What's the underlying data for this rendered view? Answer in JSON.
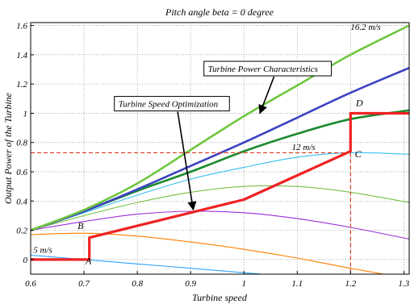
{
  "chart_data": {
    "type": "line",
    "title": "Pitch angle beta = 0 degree",
    "xlabel": "Turbine speed",
    "ylabel": "Output Power of the Turbine",
    "xlim": [
      0.6,
      1.31
    ],
    "ylim": [
      -0.1,
      1.62
    ],
    "grid": true,
    "xticks": [
      "0.6",
      "0.7",
      "0.8",
      "0.9",
      "1",
      "1.1",
      "1.2",
      "1.3"
    ],
    "yticks": [
      "0",
      "0.2",
      "0.4",
      "0.6",
      "0.8",
      "1",
      "1.2",
      "1.4",
      "1.6"
    ],
    "xtick_values": [
      0.6,
      0.7,
      0.8,
      0.9,
      1.0,
      1.1,
      1.2,
      1.3
    ],
    "ytick_values": [
      0,
      0.2,
      0.4,
      0.6,
      0.8,
      1.0,
      1.2,
      1.4,
      1.6
    ],
    "series": [
      {
        "color": "#2fa4ff",
        "x": [
          0.6,
          0.7,
          0.8,
          0.9,
          1.0,
          1.1,
          1.2,
          1.31
        ],
        "y": [
          0.03,
          0.0,
          -0.03,
          -0.06,
          -0.09,
          -0.12,
          -0.15,
          -0.18
        ]
      },
      {
        "color": "#ff8000",
        "x": [
          0.6,
          0.7,
          0.8,
          0.9,
          1.0,
          1.1,
          1.2,
          1.31
        ],
        "y": [
          0.17,
          0.18,
          0.16,
          0.12,
          0.07,
          0.01,
          -0.06,
          -0.13
        ]
      },
      {
        "color": "#9b30d9",
        "x": [
          0.6,
          0.7,
          0.8,
          0.9,
          1.0,
          1.1,
          1.2,
          1.31
        ],
        "y": [
          0.2,
          0.26,
          0.31,
          0.33,
          0.32,
          0.28,
          0.22,
          0.14
        ]
      },
      {
        "color": "#77c043",
        "x": [
          0.6,
          0.7,
          0.8,
          0.9,
          1.0,
          1.1,
          1.2,
          1.31
        ],
        "y": [
          0.2,
          0.3,
          0.39,
          0.46,
          0.5,
          0.5,
          0.46,
          0.39
        ]
      },
      {
        "color": "#35c0f0",
        "x": [
          0.6,
          0.7,
          0.8,
          0.9,
          1.0,
          1.1,
          1.2,
          1.31
        ],
        "y": [
          0.2,
          0.32,
          0.44,
          0.55,
          0.63,
          0.7,
          0.73,
          0.72
        ]
      },
      {
        "color": "#1a8a2e",
        "x": [
          0.6,
          0.7,
          0.8,
          0.9,
          1.0,
          1.1,
          1.2,
          1.31
        ],
        "y": [
          0.2,
          0.33,
          0.47,
          0.6,
          0.74,
          0.86,
          0.96,
          1.02
        ]
      },
      {
        "color": "#3d42c2",
        "x": [
          0.6,
          0.7,
          0.8,
          0.9,
          1.0,
          1.1,
          1.2,
          1.31
        ],
        "y": [
          0.2,
          0.33,
          0.48,
          0.64,
          0.8,
          0.97,
          1.14,
          1.31
        ]
      },
      {
        "color": "#6fc63f",
        "x": [
          0.6,
          0.7,
          0.8,
          0.9,
          1.0,
          1.1,
          1.2,
          1.31
        ],
        "y": [
          0.2,
          0.34,
          0.52,
          0.75,
          0.98,
          1.19,
          1.4,
          1.6
        ]
      },
      {
        "color": "#ee2222",
        "x": [
          0.6,
          0.7,
          0.7,
          0.71,
          0.71,
          1.0,
          1.2,
          1.2,
          1.31
        ],
        "y": [
          0.0,
          0.0,
          0.0,
          0.0,
          0.15,
          0.41,
          0.74,
          1.0,
          1.0
        ]
      }
    ],
    "reference_lines": [
      {
        "axis": "y",
        "value": 0.73,
        "color": "#d83a20"
      },
      {
        "axis": "x",
        "value": 1.2,
        "color": "#d83a20"
      }
    ],
    "point_labels": [
      {
        "text": "A",
        "x": 0.703,
        "y": -0.03
      },
      {
        "text": "B",
        "x": 0.688,
        "y": 0.21
      },
      {
        "text": "C",
        "x": 1.208,
        "y": 0.7
      },
      {
        "text": "D",
        "x": 1.21,
        "y": 1.05
      }
    ],
    "annotations": [
      {
        "text": "16.2 m/s",
        "x": 1.2,
        "y": 1.57
      },
      {
        "text": "12 m/s",
        "x": 1.09,
        "y": 0.75
      },
      {
        "text": "5 m/s",
        "x": 0.605,
        "y": 0.045
      },
      {
        "text": "Turbine Power Characteristics",
        "x": 0.925,
        "y": 1.3,
        "arrow_to": [
          1.03,
          1.0
        ]
      },
      {
        "text": "Turbine Speed Optimization",
        "x": 0.757,
        "y": 1.06,
        "arrow_to": [
          0.905,
          0.34
        ]
      }
    ]
  }
}
